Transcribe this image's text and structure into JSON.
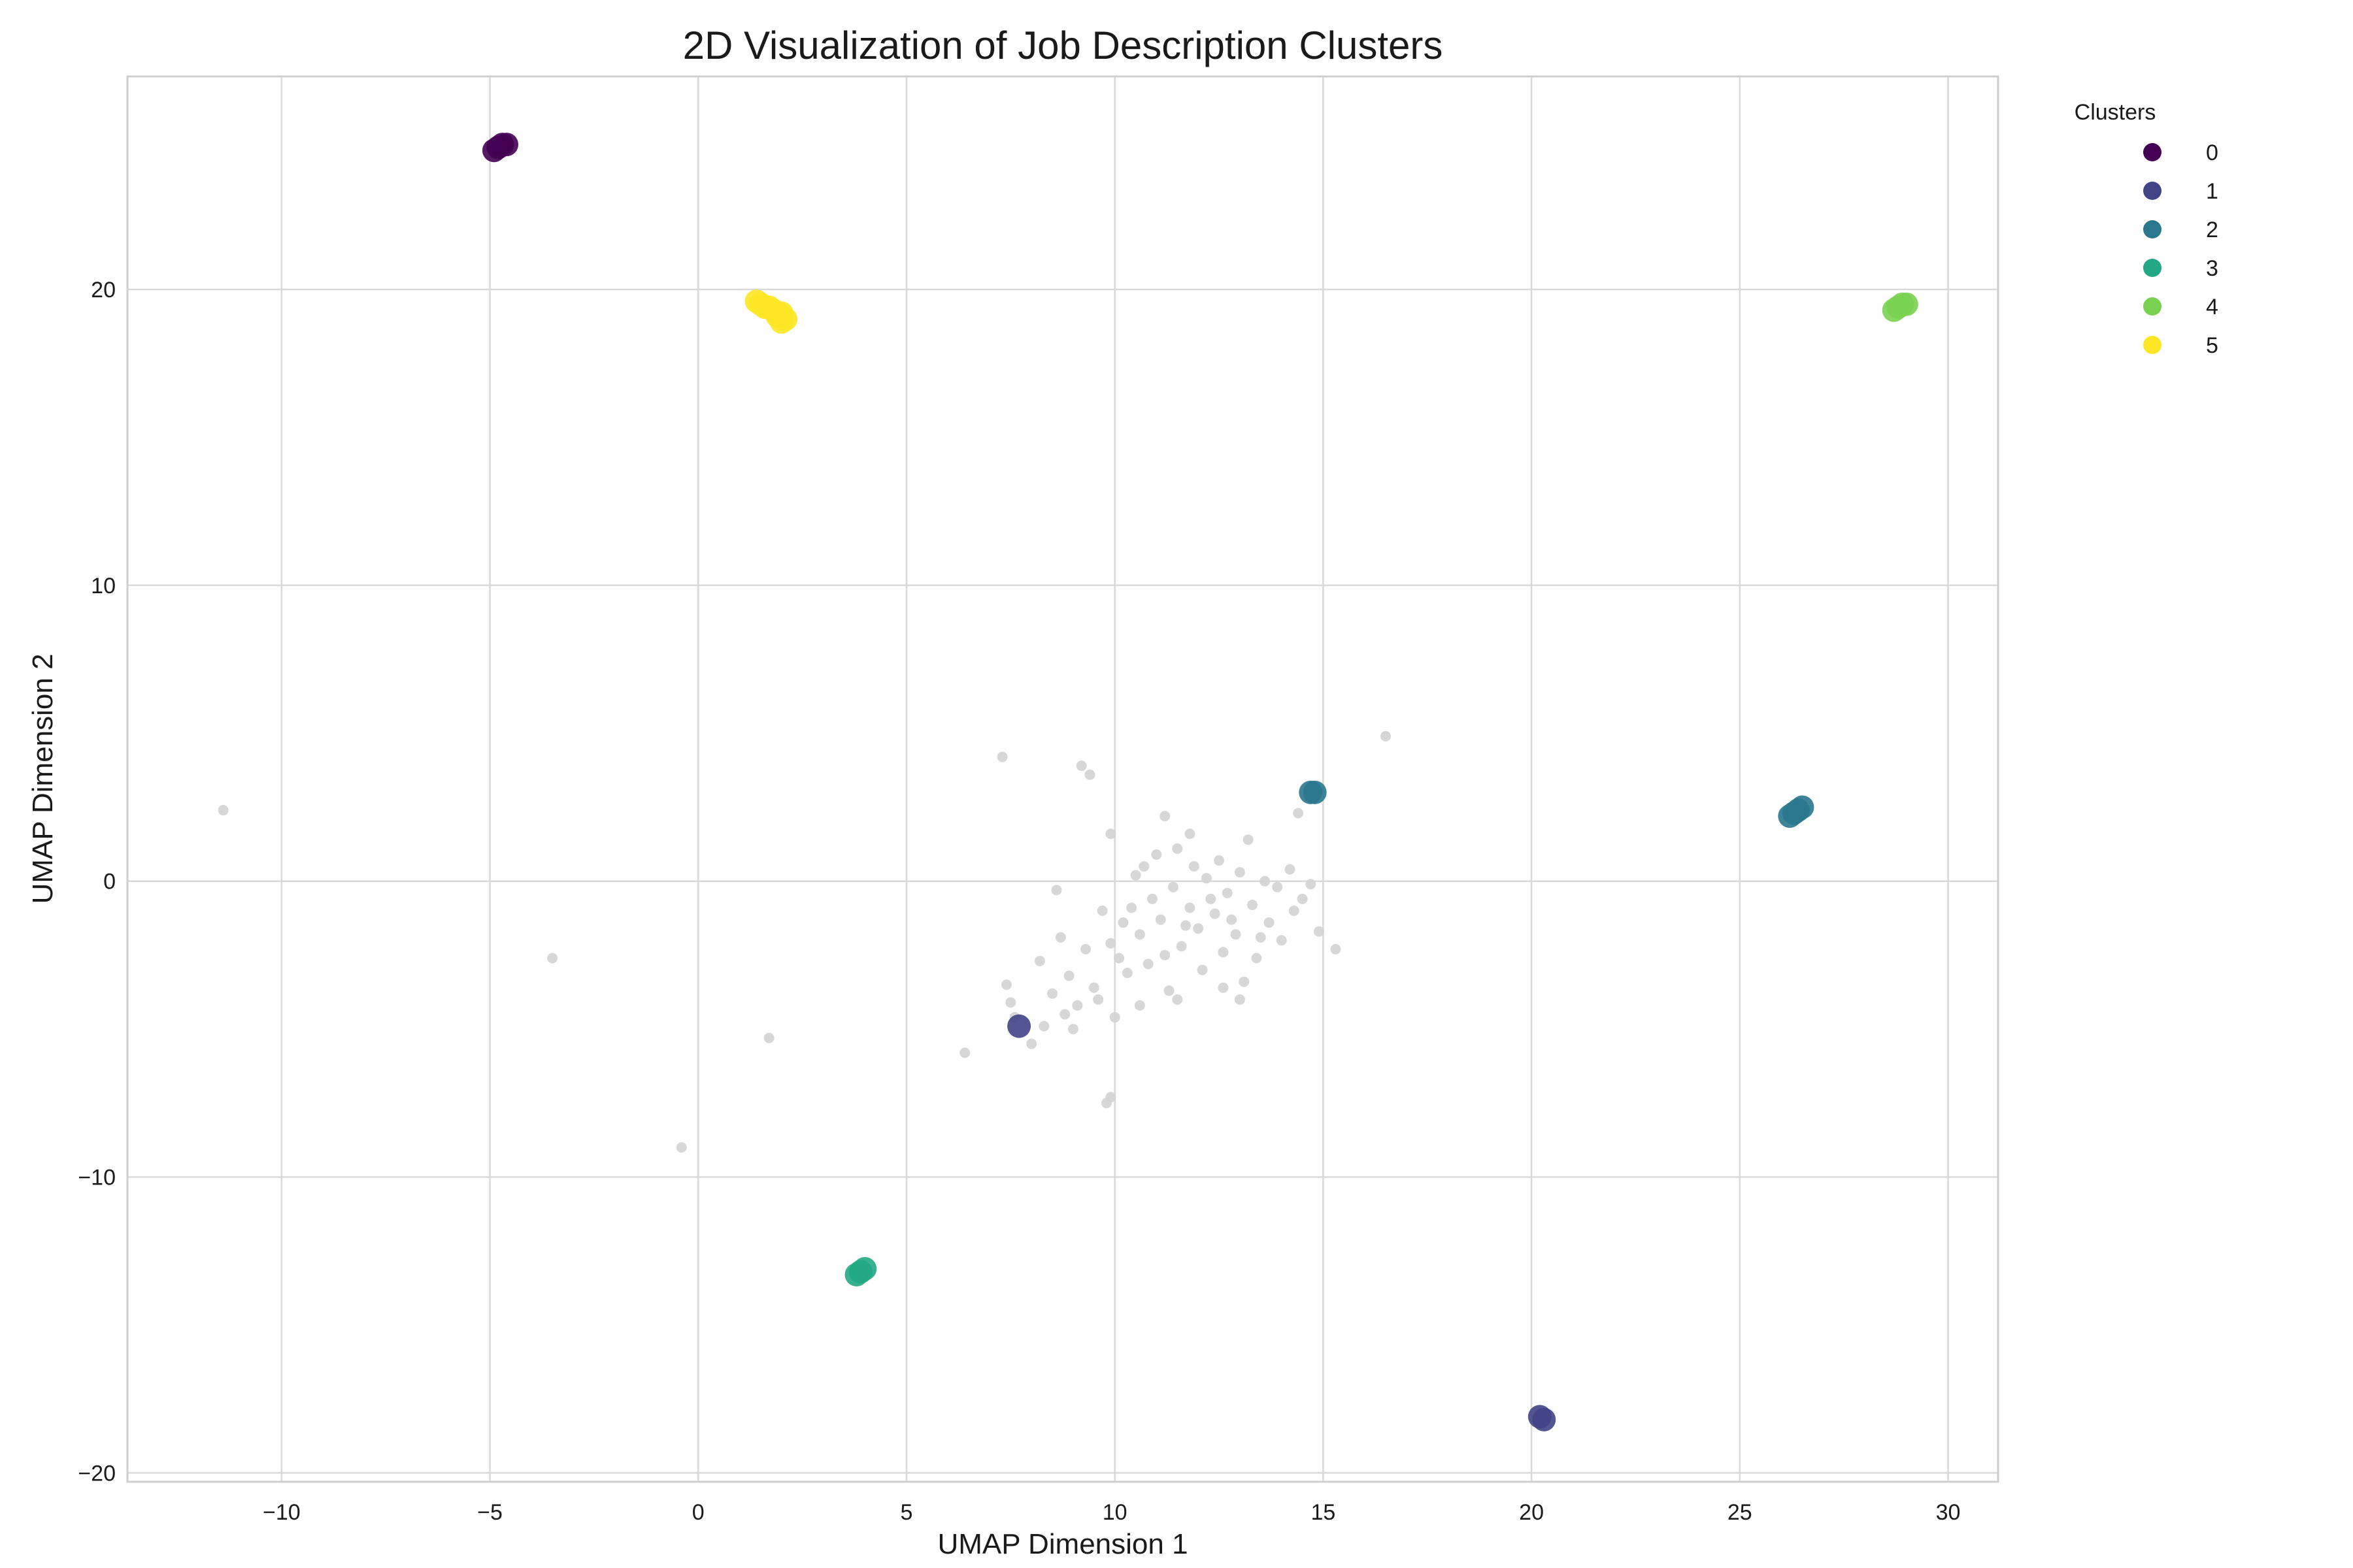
{
  "chart_data": {
    "type": "scatter",
    "title": "2D Visualization of Job Description Clusters",
    "xlabel": "UMAP Dimension 1",
    "ylabel": "UMAP Dimension 2",
    "xlim": [
      -13.7,
      31.2
    ],
    "ylim": [
      -20.3,
      27.2
    ],
    "x_ticks": [
      -10,
      -5,
      0,
      5,
      10,
      15,
      20,
      25,
      30
    ],
    "y_ticks": [
      -20,
      -10,
      0,
      10,
      20
    ],
    "x_tick_labels": [
      "−10",
      "−5",
      "0",
      "5",
      "10",
      "15",
      "20",
      "25",
      "30"
    ],
    "y_tick_labels": [
      "−20",
      "−10",
      "0",
      "10",
      "20"
    ],
    "grid": true,
    "legend": {
      "title": "Clusters",
      "placement": "outside-top-right",
      "entries": [
        "0",
        "1",
        "2",
        "3",
        "4",
        "5"
      ]
    },
    "noise_color": "#d3d3d3",
    "noise_points": [
      [
        -11.4,
        2.4
      ],
      [
        -3.5,
        -2.6
      ],
      [
        1.7,
        -5.3
      ],
      [
        -0.4,
        -9.0
      ],
      [
        7.3,
        4.2
      ],
      [
        9.2,
        3.9
      ],
      [
        9.4,
        3.6
      ],
      [
        16.5,
        4.9
      ],
      [
        14.4,
        2.3
      ],
      [
        6.4,
        -5.8
      ],
      [
        9.8,
        -7.5
      ],
      [
        9.9,
        -7.3
      ],
      [
        15.3,
        -2.3
      ],
      [
        7.4,
        -3.5
      ],
      [
        7.6,
        -4.6
      ],
      [
        8.0,
        -5.5
      ],
      [
        8.6,
        -0.3
      ],
      [
        9.9,
        1.6
      ],
      [
        11.2,
        2.2
      ],
      [
        11.8,
        1.6
      ],
      [
        13.2,
        1.4
      ],
      [
        7.5,
        -4.1
      ],
      [
        8.3,
        -4.9
      ],
      [
        8.9,
        -3.2
      ],
      [
        9.1,
        -4.2
      ],
      [
        9.3,
        -2.3
      ],
      [
        9.5,
        -3.6
      ],
      [
        9.7,
        -1.0
      ],
      [
        9.9,
        -2.1
      ],
      [
        10.0,
        -4.6
      ],
      [
        10.2,
        -1.4
      ],
      [
        10.3,
        -3.1
      ],
      [
        10.5,
        0.2
      ],
      [
        10.6,
        -1.8
      ],
      [
        10.8,
        -2.8
      ],
      [
        10.9,
        -0.6
      ],
      [
        11.0,
        0.9
      ],
      [
        11.1,
        -1.3
      ],
      [
        11.3,
        -3.7
      ],
      [
        11.4,
        -0.2
      ],
      [
        11.5,
        1.1
      ],
      [
        11.6,
        -2.2
      ],
      [
        11.8,
        -0.9
      ],
      [
        11.9,
        0.5
      ],
      [
        12.0,
        -1.6
      ],
      [
        12.1,
        -3.0
      ],
      [
        12.2,
        0.1
      ],
      [
        12.4,
        -1.1
      ],
      [
        12.5,
        0.7
      ],
      [
        12.6,
        -2.4
      ],
      [
        12.7,
        -0.4
      ],
      [
        12.9,
        -1.8
      ],
      [
        13.0,
        0.3
      ],
      [
        13.1,
        -3.4
      ],
      [
        13.3,
        -0.8
      ],
      [
        13.4,
        -2.6
      ],
      [
        13.6,
        0.0
      ],
      [
        13.7,
        -1.4
      ],
      [
        13.9,
        -0.2
      ],
      [
        14.0,
        -2.0
      ],
      [
        14.2,
        0.4
      ],
      [
        14.3,
        -1.0
      ],
      [
        14.5,
        -0.6
      ],
      [
        14.7,
        -0.1
      ],
      [
        14.9,
        -1.7
      ],
      [
        10.1,
        -2.6
      ],
      [
        10.4,
        -0.9
      ],
      [
        10.7,
        0.5
      ],
      [
        11.2,
        -2.5
      ],
      [
        11.7,
        -1.5
      ],
      [
        12.3,
        -0.6
      ],
      [
        12.8,
        -1.3
      ],
      [
        13.5,
        -1.9
      ],
      [
        9.6,
        -4.0
      ],
      [
        8.8,
        -4.5
      ],
      [
        8.5,
        -3.8
      ],
      [
        9.0,
        -5.0
      ],
      [
        10.6,
        -4.2
      ],
      [
        11.5,
        -4.0
      ],
      [
        12.6,
        -3.6
      ],
      [
        13.0,
        -4.0
      ],
      [
        8.2,
        -2.7
      ],
      [
        8.7,
        -1.9
      ]
    ],
    "series": [
      {
        "name": "0",
        "color": "#440154",
        "points": [
          [
            -4.9,
            24.7
          ],
          [
            -4.8,
            24.8
          ],
          [
            -4.7,
            24.9
          ],
          [
            -4.6,
            24.9
          ]
        ]
      },
      {
        "name": "1",
        "color": "#414487",
        "points": [
          [
            7.7,
            -4.9
          ],
          [
            20.2,
            -18.1
          ],
          [
            20.3,
            -18.2
          ]
        ]
      },
      {
        "name": "2",
        "color": "#2a788e",
        "points": [
          [
            14.7,
            3.0
          ],
          [
            14.8,
            3.0
          ],
          [
            26.2,
            2.2
          ],
          [
            26.3,
            2.3
          ],
          [
            26.4,
            2.4
          ],
          [
            26.5,
            2.5
          ]
        ]
      },
      {
        "name": "3",
        "color": "#22a884",
        "points": [
          [
            3.8,
            -13.3
          ],
          [
            3.9,
            -13.2
          ],
          [
            4.0,
            -13.1
          ]
        ]
      },
      {
        "name": "4",
        "color": "#7ad151",
        "points": [
          [
            28.7,
            19.3
          ],
          [
            28.8,
            19.4
          ],
          [
            28.9,
            19.5
          ],
          [
            29.0,
            19.5
          ]
        ]
      },
      {
        "name": "5",
        "color": "#fde725",
        "points": [
          [
            1.4,
            19.6
          ],
          [
            1.5,
            19.5
          ],
          [
            1.6,
            19.4
          ],
          [
            1.8,
            19.3
          ],
          [
            1.9,
            19.1
          ],
          [
            2.0,
            18.9
          ],
          [
            1.9,
            19.2
          ],
          [
            2.1,
            19.0
          ],
          [
            1.7,
            19.4
          ],
          [
            2.0,
            19.2
          ]
        ]
      }
    ]
  }
}
